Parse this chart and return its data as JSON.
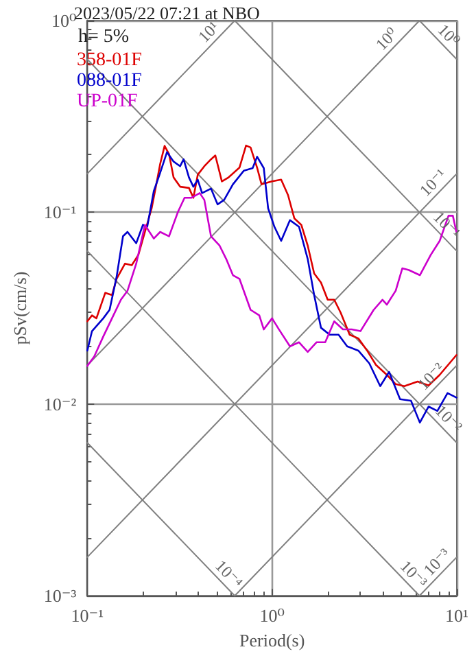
{
  "chart_data": {
    "type": "line",
    "title": "2023/05/22 07:21 at NBO",
    "xlabel": "Period(s)",
    "ylabel": "pSv(cm/s)",
    "log": "xy",
    "grid": true,
    "legend": "top left",
    "xlim": [
      0.1,
      10
    ],
    "ylim": [
      0.001,
      1
    ],
    "xticks": [
      {
        "value": 0.1,
        "label": "10⁻¹"
      },
      {
        "value": 1,
        "label": "10⁰"
      },
      {
        "value": 10,
        "label": "10¹"
      }
    ],
    "yticks": [
      {
        "value": 0.001,
        "label": "10⁻³"
      },
      {
        "value": 0.01,
        "label": "10⁻²"
      },
      {
        "value": 0.1,
        "label": "10⁻¹"
      },
      {
        "value": 1,
        "label": "10⁰"
      }
    ],
    "annotations": [
      "h= 5%",
      {
        "text": "10¹",
        "x": 0.5,
        "y": 0.796
      },
      {
        "text": "10⁰",
        "x": 4.6,
        "y": 0.732
      },
      {
        "text": "10⁰",
        "x": 8.2,
        "y": 0.766
      },
      {
        "text": "10⁻¹",
        "x": 8.2,
        "y": 0.1305
      },
      {
        "text": "10⁻¹",
        "x": 8.0,
        "y": 0.0785
      },
      {
        "text": "10⁻²",
        "x": 8.0,
        "y": 0.01273
      },
      {
        "text": "10⁻²",
        "x": 8.2,
        "y": 0.00766
      },
      {
        "text": "10⁻³",
        "x": 8.6,
        "y": 0.001369
      },
      {
        "text": "10⁻³",
        "x": 5.3,
        "y": 0.001185
      },
      {
        "text": "10⁻⁴",
        "x": 0.53,
        "y": 0.001185
      }
    ],
    "series": [
      {
        "color": "#808080",
        "x": [
          0.1,
          0.628
        ],
        "values": [
          0.159,
          1
        ]
      },
      {
        "color": "#808080",
        "x": [
          0.1,
          6.28
        ],
        "values": [
          0.0159,
          1
        ]
      },
      {
        "color": "#808080",
        "x": [
          0.1,
          10
        ],
        "values": [
          0.00159,
          0.159
        ]
      },
      {
        "color": "#808080",
        "x": [
          0.628,
          10
        ],
        "values": [
          0.001,
          0.0159
        ]
      },
      {
        "color": "#808080",
        "x": [
          6.28,
          10
        ],
        "values": [
          0.001,
          0.00159
        ]
      },
      {
        "color": "#808080",
        "x": [
          6.28,
          10
        ],
        "values": [
          1,
          0.628
        ]
      },
      {
        "color": "#808080",
        "x": [
          0.628,
          10
        ],
        "values": [
          1,
          0.0628
        ]
      },
      {
        "color": "#808080",
        "x": [
          0.1,
          10
        ],
        "values": [
          0.628,
          0.00628
        ]
      },
      {
        "color": "#808080",
        "x": [
          0.1,
          6.28
        ],
        "values": [
          0.0628,
          0.001
        ]
      },
      {
        "color": "#808080",
        "x": [
          0.1,
          0.628
        ],
        "values": [
          0.00628,
          0.001
        ]
      },
      {
        "name": "358-01F",
        "color": "#dd0000",
        "x": [
          0.1,
          0.106,
          0.112,
          0.125,
          0.136,
          0.144,
          0.16,
          0.174,
          0.189,
          0.205,
          0.223,
          0.235,
          0.248,
          0.262,
          0.277,
          0.293,
          0.318,
          0.355,
          0.375,
          0.396,
          0.43,
          0.467,
          0.493,
          0.535,
          0.581,
          0.666,
          0.723,
          0.765,
          0.83,
          0.877,
          1.0,
          1.12,
          1.22,
          1.32,
          1.44,
          1.56,
          1.69,
          1.84,
          2.0,
          2.17,
          2.35,
          2.63,
          2.93,
          3.27,
          3.65,
          4.18,
          4.67,
          5.2,
          6.14,
          7.04,
          8.08,
          9.95
        ],
        "values": [
          0.027,
          0.029,
          0.028,
          0.038,
          0.037,
          0.045,
          0.054,
          0.053,
          0.06,
          0.079,
          0.105,
          0.136,
          0.179,
          0.222,
          0.201,
          0.152,
          0.136,
          0.134,
          0.119,
          0.157,
          0.174,
          0.189,
          0.198,
          0.145,
          0.152,
          0.171,
          0.223,
          0.218,
          0.171,
          0.14,
          0.145,
          0.148,
          0.123,
          0.093,
          0.086,
          0.067,
          0.048,
          0.043,
          0.035,
          0.035,
          0.03,
          0.023,
          0.022,
          0.019,
          0.016,
          0.0142,
          0.0127,
          0.0124,
          0.0131,
          0.0125,
          0.0142,
          0.018
        ]
      },
      {
        "name": "088-01F",
        "color": "#0000cc",
        "x": [
          0.1,
          0.106,
          0.122,
          0.132,
          0.144,
          0.156,
          0.165,
          0.184,
          0.2,
          0.211,
          0.229,
          0.248,
          0.27,
          0.293,
          0.318,
          0.332,
          0.355,
          0.375,
          0.396,
          0.418,
          0.467,
          0.507,
          0.55,
          0.614,
          0.704,
          0.785,
          0.83,
          0.902,
          0.952,
          1.03,
          1.12,
          1.25,
          1.4,
          1.56,
          1.69,
          1.84,
          2.05,
          2.29,
          2.55,
          2.93,
          3.36,
          3.85,
          4.3,
          4.93,
          5.65,
          6.31,
          7.04,
          7.85,
          8.91,
          9.95
        ],
        "values": [
          0.019,
          0.024,
          0.028,
          0.031,
          0.046,
          0.075,
          0.079,
          0.069,
          0.086,
          0.084,
          0.129,
          0.161,
          0.206,
          0.184,
          0.174,
          0.189,
          0.152,
          0.136,
          0.148,
          0.126,
          0.133,
          0.11,
          0.116,
          0.14,
          0.165,
          0.17,
          0.195,
          0.17,
          0.105,
          0.084,
          0.071,
          0.091,
          0.084,
          0.057,
          0.037,
          0.025,
          0.023,
          0.023,
          0.02,
          0.019,
          0.0163,
          0.0124,
          0.0147,
          0.0106,
          0.0104,
          0.008,
          0.0097,
          0.0092,
          0.0114,
          0.0108
        ]
      },
      {
        "name": "UP-01F",
        "color": "#cc00cc",
        "x": [
          0.1,
          0.109,
          0.122,
          0.136,
          0.152,
          0.165,
          0.184,
          0.205,
          0.229,
          0.248,
          0.277,
          0.31,
          0.336,
          0.365,
          0.406,
          0.43,
          0.467,
          0.52,
          0.565,
          0.614,
          0.666,
          0.765,
          0.853,
          0.902,
          1.0,
          1.09,
          1.25,
          1.4,
          1.56,
          1.74,
          1.94,
          2.17,
          2.42,
          2.7,
          3.01,
          3.55,
          3.96,
          4.18,
          4.67,
          5.07,
          5.5,
          6.31,
          7.23,
          8.08,
          9.02,
          9.52,
          9.95
        ],
        "values": [
          0.0158,
          0.0177,
          0.0225,
          0.028,
          0.035,
          0.039,
          0.054,
          0.086,
          0.073,
          0.079,
          0.075,
          0.101,
          0.119,
          0.119,
          0.126,
          0.116,
          0.075,
          0.067,
          0.057,
          0.047,
          0.045,
          0.031,
          0.029,
          0.0245,
          0.028,
          0.0245,
          0.02,
          0.021,
          0.0187,
          0.021,
          0.021,
          0.027,
          0.0245,
          0.0245,
          0.024,
          0.031,
          0.035,
          0.033,
          0.039,
          0.051,
          0.05,
          0.047,
          0.06,
          0.071,
          0.096,
          0.096,
          0.079
        ]
      }
    ]
  }
}
